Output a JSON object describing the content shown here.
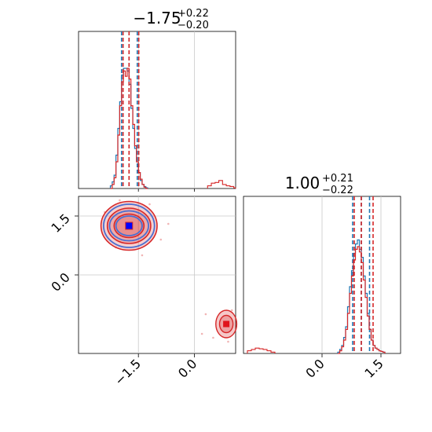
{
  "chart_data": {
    "type": "corner",
    "panels": [
      {
        "name": "hist-p1",
        "type": "histogram",
        "title": {
          "main": "−1.75",
          "sup": "+0.22",
          "sub": "−0.20"
        },
        "xlim": [
          -3.1,
          1.1
        ],
        "grid_x": [
          -1.5,
          0.0
        ],
        "series": [
          {
            "name": "blue",
            "color": "#1f77b4",
            "edges": [
              -2.25,
              -2.2,
              -2.15,
              -2.1,
              -2.05,
              -2.0,
              -1.95,
              -1.9,
              -1.85,
              -1.8,
              -1.75,
              -1.7,
              -1.65,
              -1.6,
              -1.55,
              -1.5,
              -1.45,
              -1.4,
              -1.35,
              -1.3,
              -1.25
            ],
            "counts": [
              0.02,
              0.05,
              0.1,
              0.25,
              0.45,
              0.65,
              0.85,
              0.9,
              0.9,
              0.88,
              0.78,
              0.6,
              0.45,
              0.3,
              0.2,
              0.12,
              0.06,
              0.03,
              0.015,
              0.005
            ],
            "quantiles": [
              -1.95,
              -1.75,
              -1.53
            ]
          },
          {
            "name": "red",
            "color": "#d62728",
            "edges": [
              -2.25,
              -2.2,
              -2.15,
              -2.1,
              -2.05,
              -2.0,
              -1.95,
              -1.9,
              -1.85,
              -1.8,
              -1.75,
              -1.7,
              -1.65,
              -1.6,
              -1.55,
              -1.5,
              -1.45,
              -1.4,
              -1.35,
              -1.3,
              -1.25
            ],
            "counts": [
              0.0,
              0.03,
              0.08,
              0.2,
              0.4,
              0.62,
              0.8,
              0.88,
              0.84,
              0.9,
              0.82,
              0.62,
              0.48,
              0.32,
              0.2,
              0.12,
              0.07,
              0.03,
              0.01,
              0.0
            ],
            "quantiles": [
              -1.91,
              -1.75,
              -1.49
            ],
            "extra_edges": [
              0.35,
              0.45,
              0.55,
              0.65,
              0.75,
              0.85,
              0.95,
              1.05,
              1.1
            ],
            "extra_counts": [
              0.02,
              0.04,
              0.045,
              0.06,
              0.03,
              0.02,
              0.015,
              0.005
            ]
          }
        ]
      },
      {
        "name": "scatter-p1-p2",
        "type": "contour",
        "xlim": [
          -3.1,
          1.1
        ],
        "ylim": [
          -2.0,
          2.0
        ],
        "xticks": [
          "−1.5",
          "0.0"
        ],
        "xtick_values": [
          -1.5,
          0.0
        ],
        "yticks": [
          "1.5",
          "0.0"
        ],
        "ytick_values": [
          1.5,
          0.0
        ],
        "grid_x": [
          -1.5,
          0.0
        ],
        "grid_y": [
          1.5,
          0.0
        ],
        "blue_point": [
          -1.75,
          1.25
        ],
        "red_point": [
          -1.75,
          1.25
        ],
        "red_secondary_point": [
          0.85,
          -1.25
        ],
        "blue_contours_radii": [
          [
            0.35,
            0.25
          ],
          [
            0.52,
            0.38
          ],
          [
            0.68,
            0.55
          ]
        ],
        "red_contours_radii": [
          [
            0.4,
            0.3
          ],
          [
            0.58,
            0.45
          ],
          [
            0.75,
            0.62
          ]
        ],
        "red_secondary_radii": [
          [
            0.18,
            0.22
          ],
          [
            0.28,
            0.35
          ]
        ]
      },
      {
        "name": "hist-p2",
        "type": "histogram",
        "title": {
          "main": "1.00",
          "sup": "+0.21",
          "sub": "−0.22"
        },
        "xlim": [
          -2.0,
          2.0
        ],
        "xticks": [
          "0.0",
          "1.5"
        ],
        "xtick_values": [
          0.0,
          1.5
        ],
        "grid_x": [
          0.0,
          1.5
        ],
        "series": [
          {
            "name": "blue",
            "color": "#1f77b4",
            "edges": [
              0.4,
              0.45,
              0.5,
              0.55,
              0.6,
              0.65,
              0.7,
              0.75,
              0.8,
              0.85,
              0.9,
              0.95,
              1.0,
              1.05,
              1.1,
              1.15,
              1.2,
              1.25,
              1.3,
              1.35,
              1.4,
              1.45,
              1.5,
              1.55,
              1.6
            ],
            "counts": [
              0.01,
              0.03,
              0.06,
              0.12,
              0.2,
              0.35,
              0.5,
              0.62,
              0.75,
              0.82,
              0.85,
              0.78,
              0.72,
              0.58,
              0.45,
              0.3,
              0.18,
              0.1,
              0.06,
              0.04,
              0.03,
              0.02,
              0.015,
              0.01
            ],
            "quantiles": [
              0.78,
              1.0,
              1.21
            ]
          },
          {
            "name": "red",
            "color": "#d62728",
            "edges": [
              0.4,
              0.45,
              0.5,
              0.55,
              0.6,
              0.65,
              0.7,
              0.75,
              0.8,
              0.85,
              0.9,
              0.95,
              1.0,
              1.05,
              1.1,
              1.15,
              1.2,
              1.25,
              1.3,
              1.35,
              1.4,
              1.45,
              1.5,
              1.55,
              1.6
            ],
            "counts": [
              0.0,
              0.02,
              0.05,
              0.1,
              0.18,
              0.3,
              0.45,
              0.58,
              0.7,
              0.78,
              0.8,
              0.76,
              0.68,
              0.55,
              0.42,
              0.28,
              0.18,
              0.1,
              0.06,
              0.04,
              0.03,
              0.02,
              0.015,
              0.01
            ],
            "quantiles": [
              0.82,
              1.0,
              1.3
            ],
            "extra_edges": [
              -1.9,
              -1.8,
              -1.7,
              -1.6,
              -1.5,
              -1.4,
              -1.3,
              -1.2
            ],
            "extra_counts": [
              0.02,
              0.03,
              0.04,
              0.035,
              0.03,
              0.02,
              0.01
            ]
          }
        ]
      }
    ]
  }
}
